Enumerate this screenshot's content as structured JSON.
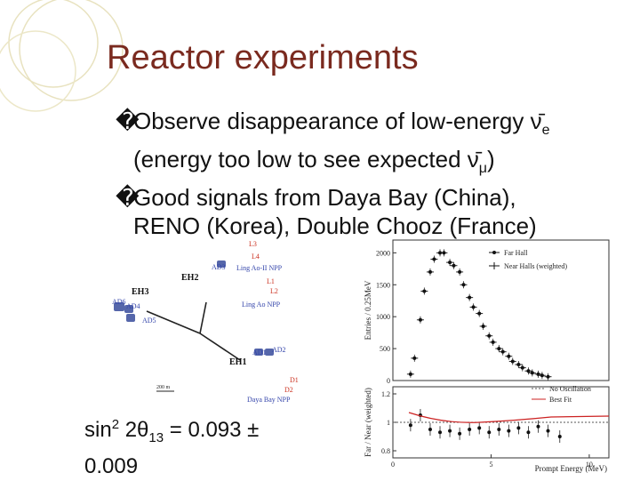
{
  "slide": {
    "title": "Reactor experiments",
    "bullets": [
      {
        "marker": "�",
        "line1_text": "Observe disappearance of low-energy ",
        "nu_symbol": "ν̄",
        "nu_sub": "e",
        "line2_text": "(energy too low to see expected ",
        "line2_sub": "μ",
        "line2_close": ")"
      },
      {
        "marker": "�",
        "line1_text": "Good signals from Daya Bay (China),",
        "line2_text": "RENO (Korea), Double Chooz (France)"
      }
    ],
    "formula": {
      "sin": "sin",
      "sup": "2",
      "rest": " 2θ",
      "sub": "13",
      "value": " = 0.093 ±",
      "line2": "0.009"
    }
  },
  "map": {
    "labels": [
      "L3",
      "L4",
      "AD3",
      "Ling Ao-II NPP",
      "L1",
      "L2",
      "Ling Ao NPP",
      "EH2",
      "EH3",
      "AD6",
      "AD4",
      "AD5",
      "EH1",
      "AD1",
      "AD2",
      "D1",
      "D2",
      "Daya Bay NPP",
      "200 m"
    ]
  },
  "chart_data": [
    {
      "type": "scatter",
      "ylabel": "Entries / 0.25MeV",
      "yticks": [
        "0",
        "500",
        "1000",
        "1500",
        "2000"
      ],
      "ylim": [
        0,
        2200
      ],
      "legend": [
        {
          "name": "Far Hall"
        },
        {
          "name": "Near Halls (weighted)"
        }
      ],
      "series": [
        {
          "name": "Far Hall",
          "x": [
            0.9,
            1.1,
            1.4,
            1.6,
            1.9,
            2.1,
            2.4,
            2.6,
            2.9,
            3.1,
            3.4,
            3.6,
            3.9,
            4.1,
            4.4,
            4.6,
            4.9,
            5.1,
            5.4,
            5.6,
            5.9,
            6.1,
            6.4,
            6.6,
            6.9,
            7.1,
            7.4,
            7.6,
            7.9
          ],
          "y": [
            100,
            350,
            950,
            1400,
            1700,
            1900,
            2000,
            2000,
            1850,
            1800,
            1700,
            1500,
            1300,
            1150,
            1050,
            850,
            700,
            600,
            500,
            450,
            380,
            300,
            250,
            200,
            150,
            120,
            100,
            80,
            60
          ]
        }
      ]
    },
    {
      "type": "scatter",
      "ylabel": "Far / Near (weighted)",
      "xlabel": "Prompt Energy (MeV)",
      "yticks": [
        "0.8",
        "1",
        "1.2"
      ],
      "xticks": [
        "0",
        "5",
        "10"
      ],
      "xlim": [
        0,
        11
      ],
      "ylim": [
        0.75,
        1.25
      ],
      "legend": [
        {
          "name": "No Oscillation"
        },
        {
          "name": "Best Fit"
        }
      ],
      "series": [
        {
          "name": "data",
          "x": [
            0.9,
            1.4,
            1.9,
            2.4,
            2.9,
            3.4,
            3.9,
            4.4,
            4.9,
            5.4,
            5.9,
            6.4,
            6.9,
            7.4,
            7.9,
            8.5
          ],
          "y": [
            0.98,
            1.05,
            0.95,
            0.93,
            0.94,
            0.92,
            0.95,
            0.96,
            0.93,
            0.95,
            0.94,
            0.96,
            0.93,
            0.97,
            0.94,
            0.9
          ]
        }
      ]
    }
  ]
}
